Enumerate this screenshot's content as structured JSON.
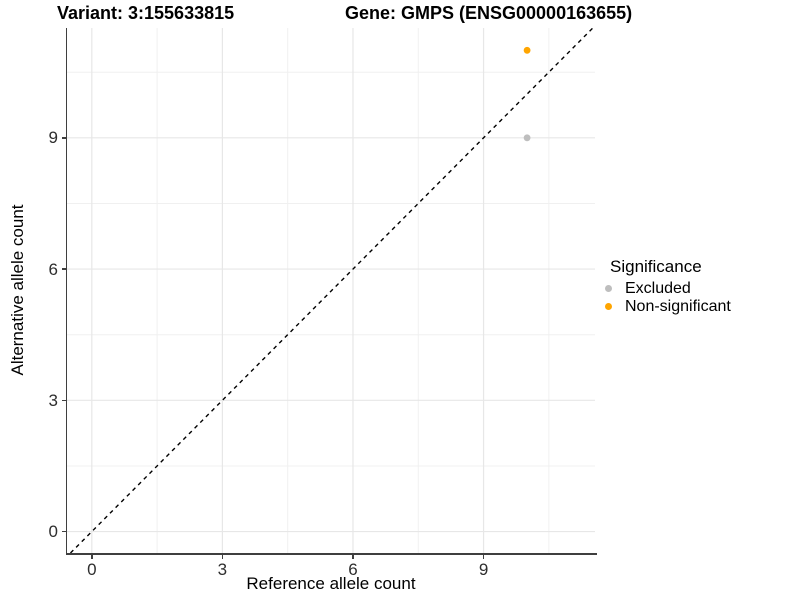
{
  "title_left": "Variant: 3:155633815",
  "title_right": "Gene: GMPS (ENSG00000163655)",
  "chart_data": {
    "type": "scatter",
    "title_left": "Variant: 3:155633815",
    "title_right": "Gene: GMPS (ENSG00000163655)",
    "xlabel": "Reference allele count",
    "ylabel": "Alternative allele count",
    "x_ticks": [
      0,
      3,
      6,
      9
    ],
    "y_ticks": [
      0,
      3,
      6,
      9
    ],
    "x_tick_labels": [
      "0",
      "3",
      "6",
      "9"
    ],
    "y_tick_labels": [
      "0",
      "3",
      "6",
      "9"
    ],
    "xlim": [
      -0.57,
      11.56
    ],
    "ylim": [
      -0.49,
      11.51
    ],
    "grid": "major+minor",
    "identity_line": {
      "equation": "y = x",
      "style": "dashed",
      "color": "#000000"
    },
    "series": [
      {
        "name": "Excluded",
        "color": "#BEBEBE",
        "points": [
          {
            "x": 10,
            "y": 9
          }
        ]
      },
      {
        "name": "Non-significant",
        "color": "#FFA500",
        "points": [
          {
            "x": 10,
            "y": 11
          }
        ]
      }
    ],
    "legend": {
      "title": "Significance",
      "position": "right",
      "entries": [
        {
          "label": "Excluded",
          "color": "#BEBEBE"
        },
        {
          "label": "Non-significant",
          "color": "#FFA500"
        }
      ]
    }
  }
}
